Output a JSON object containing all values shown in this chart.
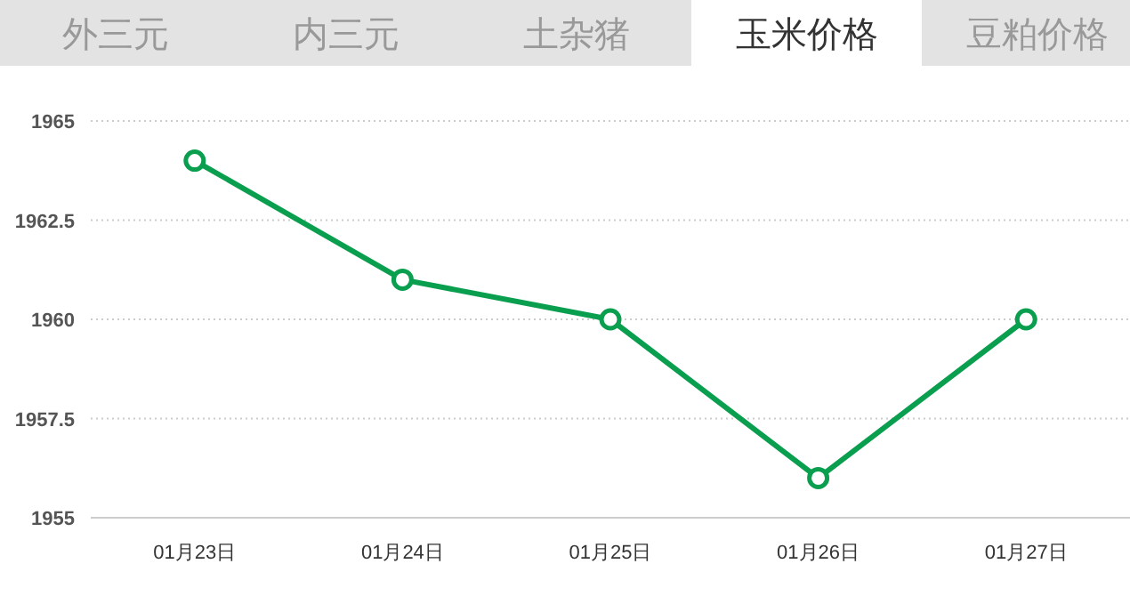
{
  "chart_data": {
    "type": "line",
    "title": "玉米价格",
    "annotations": [
      "外三元",
      "内三元",
      "土杂猪",
      "豆粕价格"
    ],
    "categories": [
      "01月23日",
      "01月24日",
      "01月25日",
      "01月26日",
      "01月27日"
    ],
    "series": [
      {
        "color": "#0a9e4f",
        "values": [
          1964,
          1961,
          1960,
          1956,
          1960
        ]
      }
    ],
    "ylim": [
      1955,
      1965
    ],
    "yticks": [
      1955,
      1957.5,
      1960,
      1962.5,
      1965
    ],
    "grid": "y",
    "marker": "circle",
    "line_style": "solid"
  }
}
